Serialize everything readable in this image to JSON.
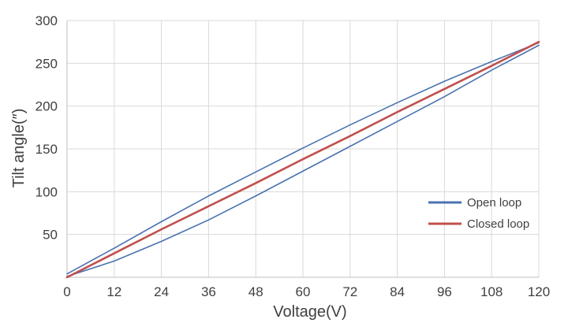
{
  "chart_data": {
    "type": "line",
    "title": "",
    "xlabel": "Voltage(V)",
    "ylabel": "Tilt angle(″)",
    "xlim": [
      0,
      120
    ],
    "ylim": [
      0,
      300
    ],
    "x_ticks": [
      0,
      12,
      24,
      36,
      48,
      60,
      72,
      84,
      96,
      108,
      120
    ],
    "y_ticks": [
      50,
      100,
      150,
      200,
      250,
      300
    ],
    "grid": true,
    "legend_position": "right",
    "series": [
      {
        "name": "Open loop",
        "color": "#4a72b0",
        "segments": [
          {
            "x": [
              0,
              12,
              24,
              36,
              48,
              60,
              72,
              84,
              96,
              108,
              120
            ],
            "y": [
              1,
              19,
              42,
              67,
              95,
              124,
              153,
              182,
              211,
              242,
              271
            ]
          },
          {
            "x": [
              120,
              108,
              96,
              84,
              72,
              60,
              48,
              36,
              24,
              12,
              0
            ],
            "y": [
              274,
              252,
              229,
              204,
              178,
              151,
              123,
              95,
              65,
              34,
              4
            ]
          }
        ]
      },
      {
        "name": "Closed loop",
        "color": "#c0504d",
        "segments": [
          {
            "x": [
              0,
              12,
              24,
              36,
              48,
              60,
              72,
              84,
              96,
              108,
              120
            ],
            "y": [
              0,
              28,
              56,
              83,
              110,
              138,
              165,
              193,
              220,
              247,
              275
            ]
          }
        ]
      }
    ]
  }
}
